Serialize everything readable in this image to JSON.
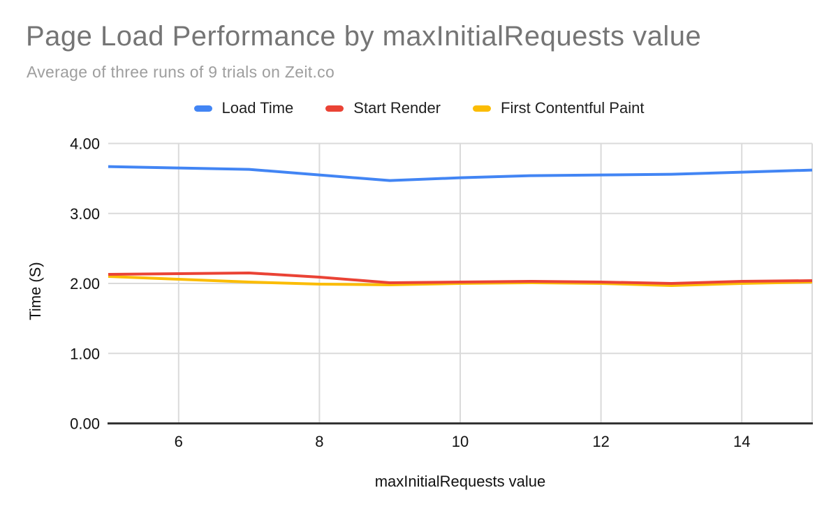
{
  "header": {
    "title": "Page Load Performance by maxInitialRequests value",
    "subtitle": "Average of three runs of 9 trials on Zeit.co"
  },
  "legend": {
    "position": "top",
    "items": [
      {
        "label": "Load Time",
        "color": "#4285f4"
      },
      {
        "label": "Start Render",
        "color": "#ea4335"
      },
      {
        "label": "First Contentful Paint",
        "color": "#fbbc04"
      }
    ]
  },
  "chart_data": {
    "type": "line",
    "title": "Page Load Performance by maxInitialRequests value",
    "subtitle": "Average of three runs of 9 trials on Zeit.co",
    "xlabel": "maxInitialRequests value",
    "ylabel": "Time (S)",
    "x": [
      5,
      6,
      7,
      8,
      9,
      10,
      11,
      12,
      13,
      14,
      15
    ],
    "series": [
      {
        "name": "Load Time",
        "color": "#4285f4",
        "values": [
          3.67,
          3.65,
          3.63,
          3.55,
          3.47,
          3.51,
          3.54,
          3.55,
          3.56,
          3.59,
          3.62
        ]
      },
      {
        "name": "Start Render",
        "color": "#ea4335",
        "values": [
          2.13,
          2.14,
          2.15,
          2.09,
          2.01,
          2.02,
          2.03,
          2.02,
          2.0,
          2.03,
          2.04
        ]
      },
      {
        "name": "First Contentful Paint",
        "color": "#fbbc04",
        "values": [
          2.1,
          2.06,
          2.02,
          1.99,
          1.98,
          2.0,
          2.01,
          2.0,
          1.97,
          2.0,
          2.02
        ]
      }
    ],
    "xlim": [
      5,
      15
    ],
    "ylim": [
      0,
      4
    ],
    "x_ticks": [
      6,
      8,
      10,
      12,
      14
    ],
    "y_ticks": [
      0,
      1,
      2,
      3,
      4
    ],
    "y_tick_labels": [
      "0.00",
      "1.00",
      "2.00",
      "3.00",
      "4.00"
    ],
    "grid": true,
    "legend_position": "top"
  }
}
